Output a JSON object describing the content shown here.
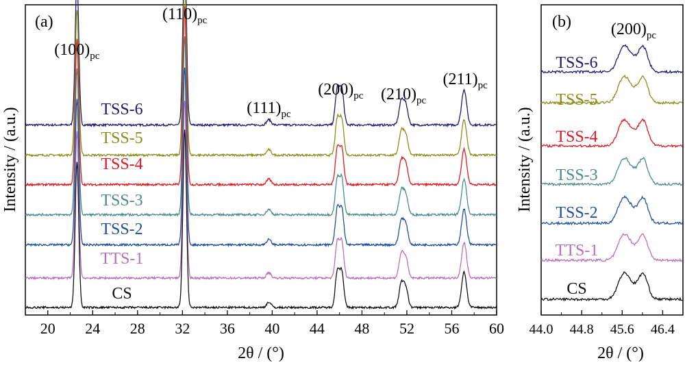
{
  "chart_data": [
    {
      "panel_label": "(a)",
      "type": "line",
      "xlabel": "2θ / (°)",
      "ylabel": "Intensity / (a.u.)",
      "xlim": [
        18,
        60
      ],
      "xticks": [
        20,
        24,
        28,
        32,
        36,
        40,
        44,
        48,
        52,
        56,
        60
      ],
      "xtick_labels": [
        "20",
        "24",
        "28",
        "32",
        "36",
        "40",
        "44",
        "48",
        "52",
        "56",
        "60"
      ],
      "yticks": "none",
      "grid": false,
      "peak_labels": [
        {
          "hkl": "(100)",
          "sub": "pc",
          "x": 22.6
        },
        {
          "hkl": "(110)",
          "sub": "pc",
          "x": 32.2
        },
        {
          "hkl": "(111)",
          "sub": "pc",
          "x": 39.7
        },
        {
          "hkl": "(200)",
          "sub": "pc",
          "x": 46.1
        },
        {
          "hkl": "(210)",
          "sub": "pc",
          "x": 51.7
        },
        {
          "hkl": "(211)",
          "sub": "pc",
          "x": 57.2
        }
      ],
      "peaks": [
        {
          "pos": 22.6,
          "width": 0.16,
          "height": 0.82
        },
        {
          "pos": 32.2,
          "width": 0.16,
          "height": 1.0
        },
        {
          "pos": 39.7,
          "width": 0.2,
          "height": 0.03
        },
        {
          "pos": 45.8,
          "width": 0.18,
          "height": 0.2
        },
        {
          "pos": 46.2,
          "width": 0.18,
          "height": 0.2
        },
        {
          "pos": 51.5,
          "width": 0.2,
          "height": 0.13
        },
        {
          "pos": 51.9,
          "width": 0.2,
          "height": 0.11
        },
        {
          "pos": 57.1,
          "width": 0.22,
          "height": 0.2
        }
      ],
      "series": [
        {
          "name": "TSS-6",
          "color": "#1a1a6e",
          "baseline_offset": 5.55
        },
        {
          "name": "TSS-5",
          "color": "#8c8c1a",
          "baseline_offset": 4.67
        },
        {
          "name": "TSS-4",
          "color": "#e0191e",
          "baseline_offset": 3.81
        },
        {
          "name": "TSS-3",
          "color": "#4a8a8c",
          "baseline_offset": 2.93
        },
        {
          "name": "TSS-2",
          "color": "#1f4fa0",
          "baseline_offset": 2.05
        },
        {
          "name": "TTS-1",
          "color": "#b86eb8",
          "baseline_offset": 1.08
        },
        {
          "name": "CS",
          "color": "#111111",
          "baseline_offset": 0.22
        }
      ]
    },
    {
      "panel_label": "(b)",
      "type": "line",
      "peak_label": {
        "hkl": "(200)",
        "sub": "pc"
      },
      "xlabel": "2θ / (°)",
      "ylabel": "Intensity / (a.u.)",
      "xlim": [
        44.0,
        46.8
      ],
      "xticks": [
        44.0,
        44.8,
        45.6,
        46.4
      ],
      "xtick_labels": [
        "44.0",
        "44.8",
        "45.6",
        "46.4"
      ],
      "yticks": "none",
      "grid": false,
      "series": [
        {
          "name": "TSS-6",
          "color": "#1a1a6e"
        },
        {
          "name": "TSS-5",
          "color": "#8c8c1a"
        },
        {
          "name": "TSS-4",
          "color": "#e0191e"
        },
        {
          "name": "TSS-3",
          "color": "#4a8a8c"
        },
        {
          "name": "TSS-2",
          "color": "#1f4fa0"
        },
        {
          "name": "TTS-1",
          "color": "#b86eb8"
        },
        {
          "name": "CS",
          "color": "#111111"
        }
      ]
    }
  ]
}
